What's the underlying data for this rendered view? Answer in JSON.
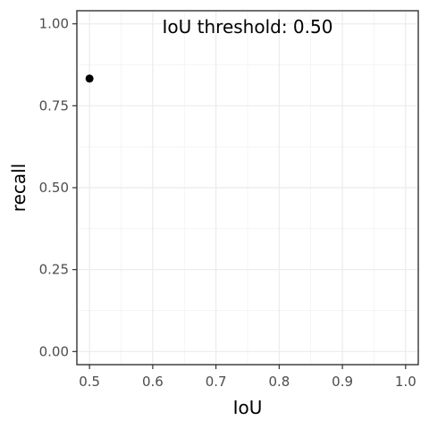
{
  "chart_data": {
    "type": "scatter",
    "title": "",
    "xlabel": "IoU",
    "ylabel": "recall",
    "xlim": [
      0.48,
      1.02
    ],
    "ylim": [
      -0.04,
      1.04
    ],
    "x_ticks": [
      0.5,
      0.6,
      0.7,
      0.8,
      0.9,
      1.0
    ],
    "x_tick_labels": [
      "0.5",
      "0.6",
      "0.7",
      "0.8",
      "0.9",
      "1.0"
    ],
    "y_ticks": [
      0.0,
      0.25,
      0.5,
      0.75,
      1.0
    ],
    "y_tick_labels": [
      "0.00",
      "0.25",
      "0.50",
      "0.75",
      "1.00"
    ],
    "grid": true,
    "legend": "none",
    "annotation": "IoU threshold: 0.50",
    "point_color": "#000000",
    "series": [
      {
        "x": [
          0.5
        ],
        "y": [
          0.833
        ]
      }
    ]
  }
}
